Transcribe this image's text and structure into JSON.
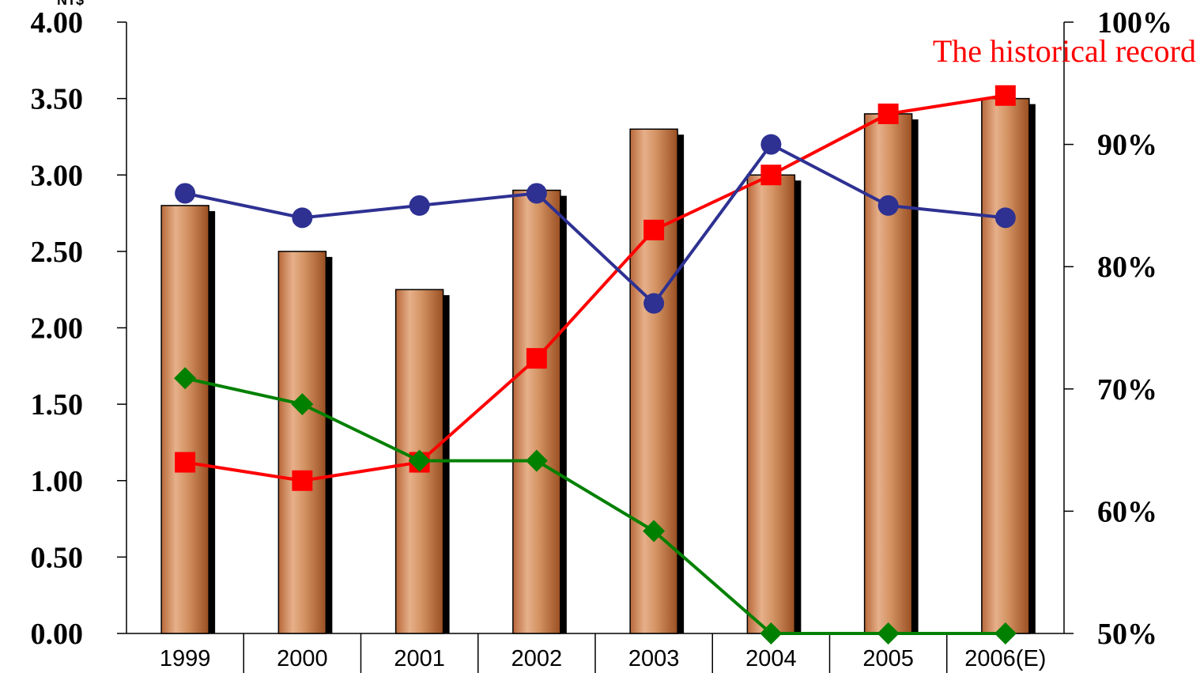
{
  "chart_data": {
    "type": "bar",
    "title": "",
    "left_unit_label": "NT$",
    "annotation": "The historical record",
    "categories": [
      "1999",
      "2000",
      "2001",
      "2002",
      "2003",
      "2004",
      "2005",
      "2006(E)"
    ],
    "left_axis": {
      "range": [
        0,
        4
      ],
      "ticks": [
        "0.00",
        "0.50",
        "1.00",
        "1.50",
        "2.00",
        "2.50",
        "3.00",
        "3.50",
        "4.00"
      ]
    },
    "right_axis": {
      "range": [
        50,
        100
      ],
      "ticks": [
        "50%",
        "60%",
        "70%",
        "80%",
        "90%",
        "100%"
      ]
    },
    "grid": false,
    "legend": "none",
    "series": [
      {
        "kind": "bar",
        "axis": "left",
        "color": "#d4915e",
        "values": [
          2.8,
          2.5,
          2.25,
          2.9,
          3.3,
          3.0,
          3.4,
          3.5
        ]
      },
      {
        "kind": "line",
        "axis": "right",
        "color": "#ff0000",
        "marker": "square",
        "values": [
          64,
          62.5,
          64,
          72.5,
          83,
          87.5,
          92.5,
          94
        ]
      },
      {
        "kind": "line",
        "axis": "right",
        "color": "#2e3192",
        "marker": "circle",
        "values": [
          86,
          84,
          85,
          86,
          77,
          90,
          85,
          84
        ]
      },
      {
        "kind": "line",
        "axis": "left",
        "color": "#008000",
        "marker": "diamond",
        "values": [
          1.67,
          1.5,
          1.13,
          1.13,
          0.67,
          0.0,
          0.0,
          0.0
        ]
      }
    ]
  }
}
